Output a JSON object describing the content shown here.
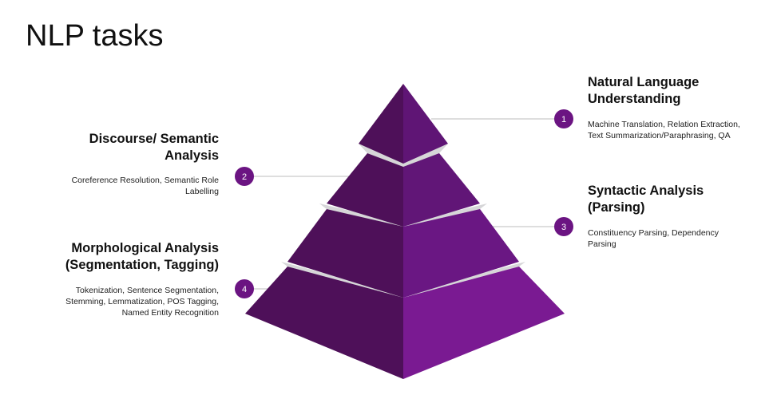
{
  "title": "NLP tasks",
  "colors": {
    "purple_dark": "#4e1059",
    "purple_mid": "#5f1575",
    "purple_light": "#7a1a92",
    "gap": "#d6d6d8",
    "line": "#c9c9c9"
  },
  "levels": [
    {
      "number": "1",
      "heading_lines": [
        "Natural Language",
        "Understanding"
      ],
      "desc_lines": [
        "Machine Translation, Relation Extraction,",
        "Text Summarization/Paraphrasing, QA"
      ]
    },
    {
      "number": "2",
      "heading_lines": [
        "Discourse/ Semantic",
        "Analysis"
      ],
      "desc_lines": [
        "Coreference Resolution, Semantic Role",
        "Labelling"
      ]
    },
    {
      "number": "3",
      "heading_lines": [
        "Syntactic Analysis",
        "(Parsing)"
      ],
      "desc_lines": [
        "Constituency Parsing, Dependency",
        "Parsing"
      ]
    },
    {
      "number": "4",
      "heading_lines": [
        "Morphological Analysis",
        "(Segmentation, Tagging)"
      ],
      "desc_lines": [
        "Tokenization, Sentence Segmentation,",
        "Stemming, Lemmatization,  POS Tagging,",
        "Named Entity Recognition"
      ]
    }
  ]
}
